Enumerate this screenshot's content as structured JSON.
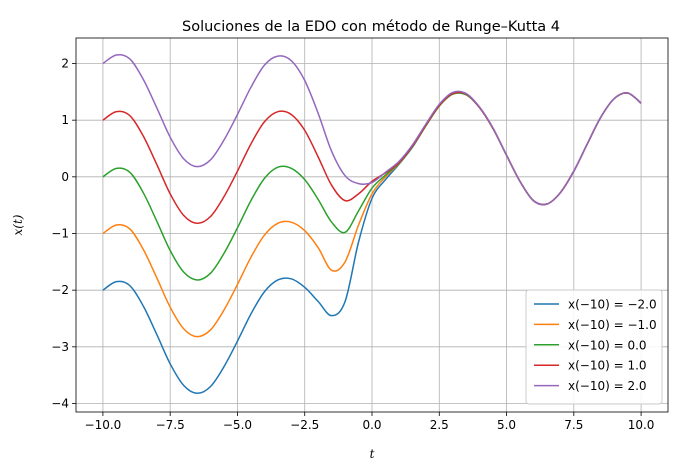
{
  "chart_data": {
    "type": "line",
    "title": "Soluciones de la EDO con método de Runge–Kutta 4",
    "xlabel": "t",
    "ylabel": "x(t)",
    "xlim": [
      -11.0,
      11.0
    ],
    "ylim": [
      -4.15,
      2.45
    ],
    "xticks": [
      -10.0,
      -7.5,
      -5.0,
      -2.5,
      0.0,
      2.5,
      5.0,
      7.5,
      10.0
    ],
    "xtick_labels": [
      "−10.0",
      "−7.5",
      "−5.0",
      "−2.5",
      "0.0",
      "2.5",
      "5.0",
      "7.5",
      "10.0"
    ],
    "yticks": [
      -4,
      -3,
      -2,
      -1,
      0,
      1,
      2
    ],
    "ytick_labels": [
      "−4",
      "−3",
      "−2",
      "−1",
      "0",
      "1",
      "2"
    ],
    "grid": true,
    "legend_position": "lower-right",
    "x": [
      -10.0,
      -9.5,
      -9.0,
      -8.5,
      -8.0,
      -7.5,
      -7.0,
      -6.5,
      -6.0,
      -5.5,
      -5.0,
      -4.5,
      -4.0,
      -3.5,
      -3.0,
      -2.5,
      -2.0,
      -1.5,
      -1.0,
      -0.5,
      0.0,
      0.5,
      1.0,
      1.5,
      2.0,
      2.5,
      3.0,
      3.5,
      4.0,
      4.5,
      5.0,
      5.5,
      6.0,
      6.5,
      7.0,
      7.5,
      8.0,
      8.5,
      9.0,
      9.5,
      10.0
    ],
    "series": [
      {
        "name": "x(−10) = −2.0",
        "color": "#1f77b4",
        "values": [
          -2.0,
          -1.85,
          -1.92,
          -2.28,
          -2.78,
          -3.3,
          -3.68,
          -3.82,
          -3.7,
          -3.35,
          -2.9,
          -2.42,
          -2.03,
          -1.82,
          -1.8,
          -1.95,
          -2.2,
          -2.45,
          -2.2,
          -1.15,
          -0.38,
          -0.05,
          0.22,
          0.52,
          0.9,
          1.25,
          1.46,
          1.45,
          1.22,
          0.85,
          0.38,
          -0.08,
          -0.42,
          -0.48,
          -0.28,
          0.1,
          0.58,
          1.05,
          1.38,
          1.48,
          1.3
        ]
      },
      {
        "name": "x(−10) = −1.0",
        "color": "#ff7f0e",
        "values": [
          -1.0,
          -0.85,
          -0.92,
          -1.28,
          -1.78,
          -2.3,
          -2.68,
          -2.82,
          -2.7,
          -2.35,
          -1.9,
          -1.42,
          -1.03,
          -0.82,
          -0.8,
          -0.95,
          -1.25,
          -1.65,
          -1.5,
          -0.85,
          -0.3,
          0.0,
          0.23,
          0.53,
          0.9,
          1.25,
          1.46,
          1.45,
          1.22,
          0.85,
          0.38,
          -0.08,
          -0.42,
          -0.48,
          -0.28,
          0.1,
          0.58,
          1.05,
          1.38,
          1.48,
          1.3
        ]
      },
      {
        "name": "x(−10) = 0.0",
        "color": "#2ca02c",
        "values": [
          0.0,
          0.15,
          0.08,
          -0.28,
          -0.78,
          -1.3,
          -1.68,
          -1.82,
          -1.7,
          -1.35,
          -0.9,
          -0.42,
          -0.03,
          0.17,
          0.15,
          -0.05,
          -0.4,
          -0.8,
          -0.98,
          -0.6,
          -0.2,
          0.03,
          0.24,
          0.53,
          0.9,
          1.25,
          1.46,
          1.45,
          1.22,
          0.85,
          0.38,
          -0.08,
          -0.42,
          -0.48,
          -0.28,
          0.1,
          0.58,
          1.05,
          1.38,
          1.48,
          1.3
        ]
      },
      {
        "name": "x(−10) = 1.0",
        "color": "#d62728",
        "values": [
          1.0,
          1.15,
          1.08,
          0.72,
          0.22,
          -0.3,
          -0.68,
          -0.82,
          -0.7,
          -0.35,
          0.1,
          0.58,
          0.97,
          1.15,
          1.1,
          0.82,
          0.35,
          -0.15,
          -0.42,
          -0.3,
          -0.08,
          0.07,
          0.25,
          0.54,
          0.91,
          1.26,
          1.47,
          1.46,
          1.22,
          0.85,
          0.38,
          -0.08,
          -0.42,
          -0.48,
          -0.28,
          0.1,
          0.58,
          1.05,
          1.38,
          1.48,
          1.3
        ]
      },
      {
        "name": "x(−10) = 2.0",
        "color": "#9467bd",
        "values": [
          2.0,
          2.15,
          2.08,
          1.72,
          1.22,
          0.7,
          0.32,
          0.18,
          0.3,
          0.65,
          1.1,
          1.58,
          1.97,
          2.13,
          2.05,
          1.7,
          1.12,
          0.45,
          0.02,
          -0.12,
          -0.1,
          0.08,
          0.27,
          0.56,
          0.93,
          1.28,
          1.49,
          1.47,
          1.23,
          0.86,
          0.38,
          -0.08,
          -0.42,
          -0.48,
          -0.28,
          0.1,
          0.58,
          1.05,
          1.38,
          1.48,
          1.3
        ]
      }
    ]
  }
}
